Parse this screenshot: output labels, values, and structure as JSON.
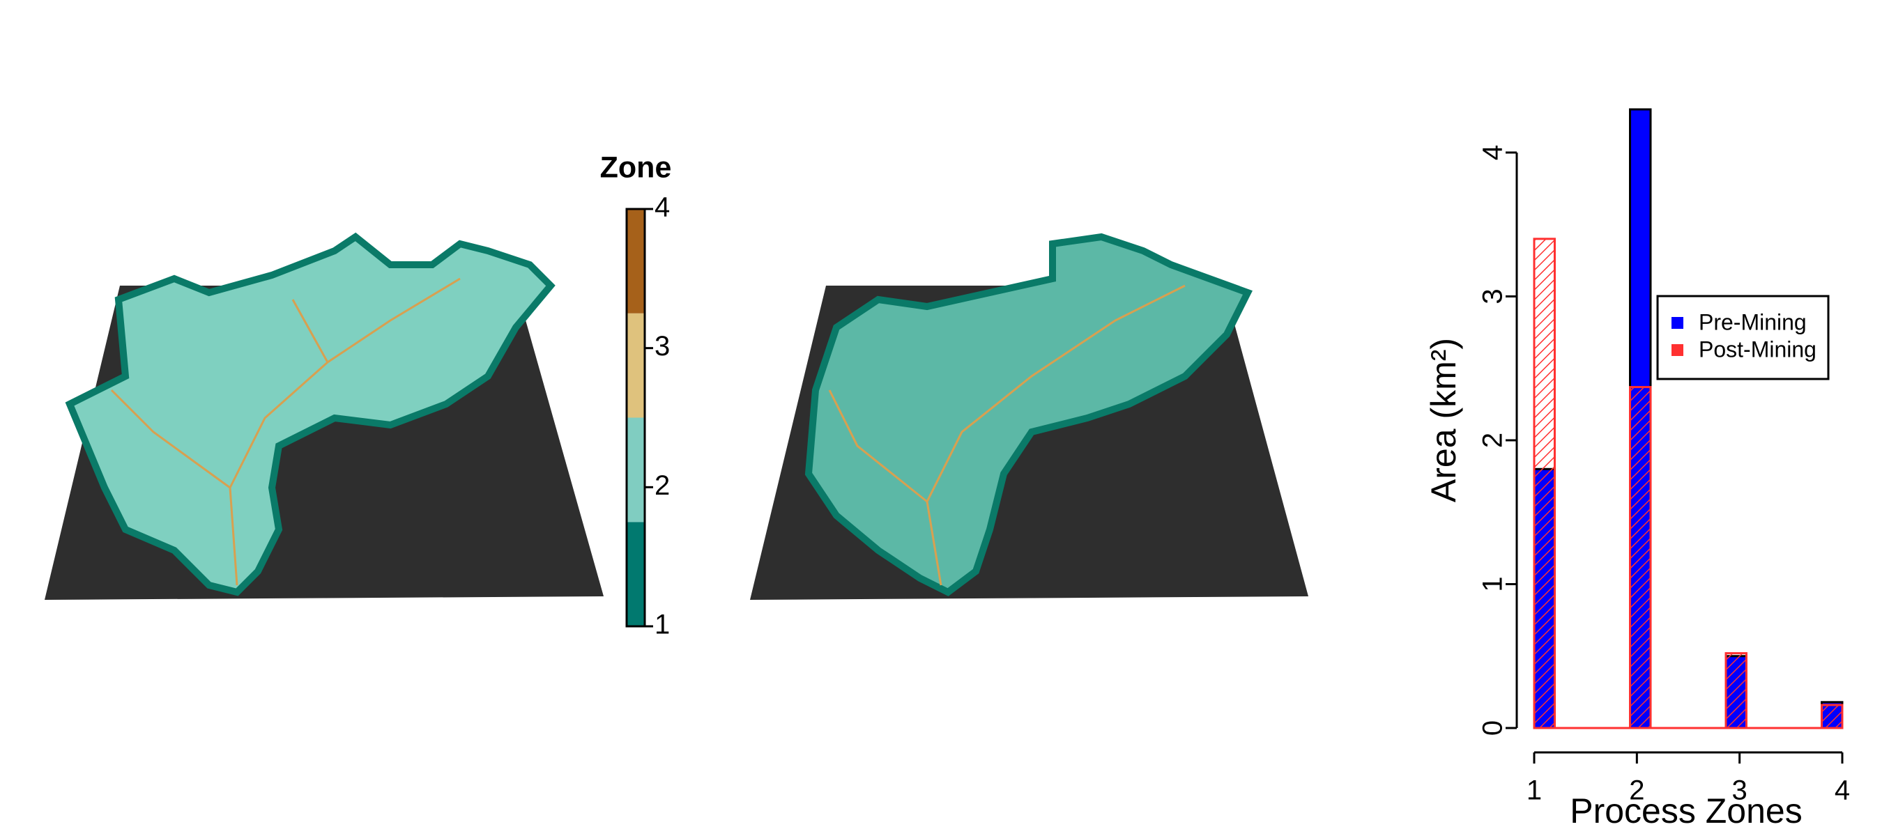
{
  "chart_data": [
    {
      "type": "colorbar",
      "title": "Zone",
      "lim": [
        1,
        4
      ],
      "ticks": [
        1,
        2,
        3,
        4
      ],
      "colors": [
        "#01796f",
        "#80cdc1",
        "#dfc27d",
        "#a6611a"
      ]
    },
    {
      "type": "bar",
      "x": [
        1,
        2,
        3,
        4
      ],
      "xlim": [
        1,
        4
      ],
      "xticks": [
        1,
        2,
        3,
        4
      ],
      "ylim": [
        0,
        4.3
      ],
      "yticks": [
        0,
        1,
        2,
        3,
        4
      ],
      "x_label": "Process Zones",
      "y_label": "Area (km²)",
      "series": [
        {
          "name": "Pre-Mining",
          "color": "#0000ff",
          "values": [
            1.8,
            4.3,
            0.5,
            0.18
          ]
        },
        {
          "name": "Post-Mining",
          "color": "#ff3030",
          "values": [
            3.4,
            2.37,
            0.52,
            0.16
          ]
        }
      ]
    }
  ]
}
